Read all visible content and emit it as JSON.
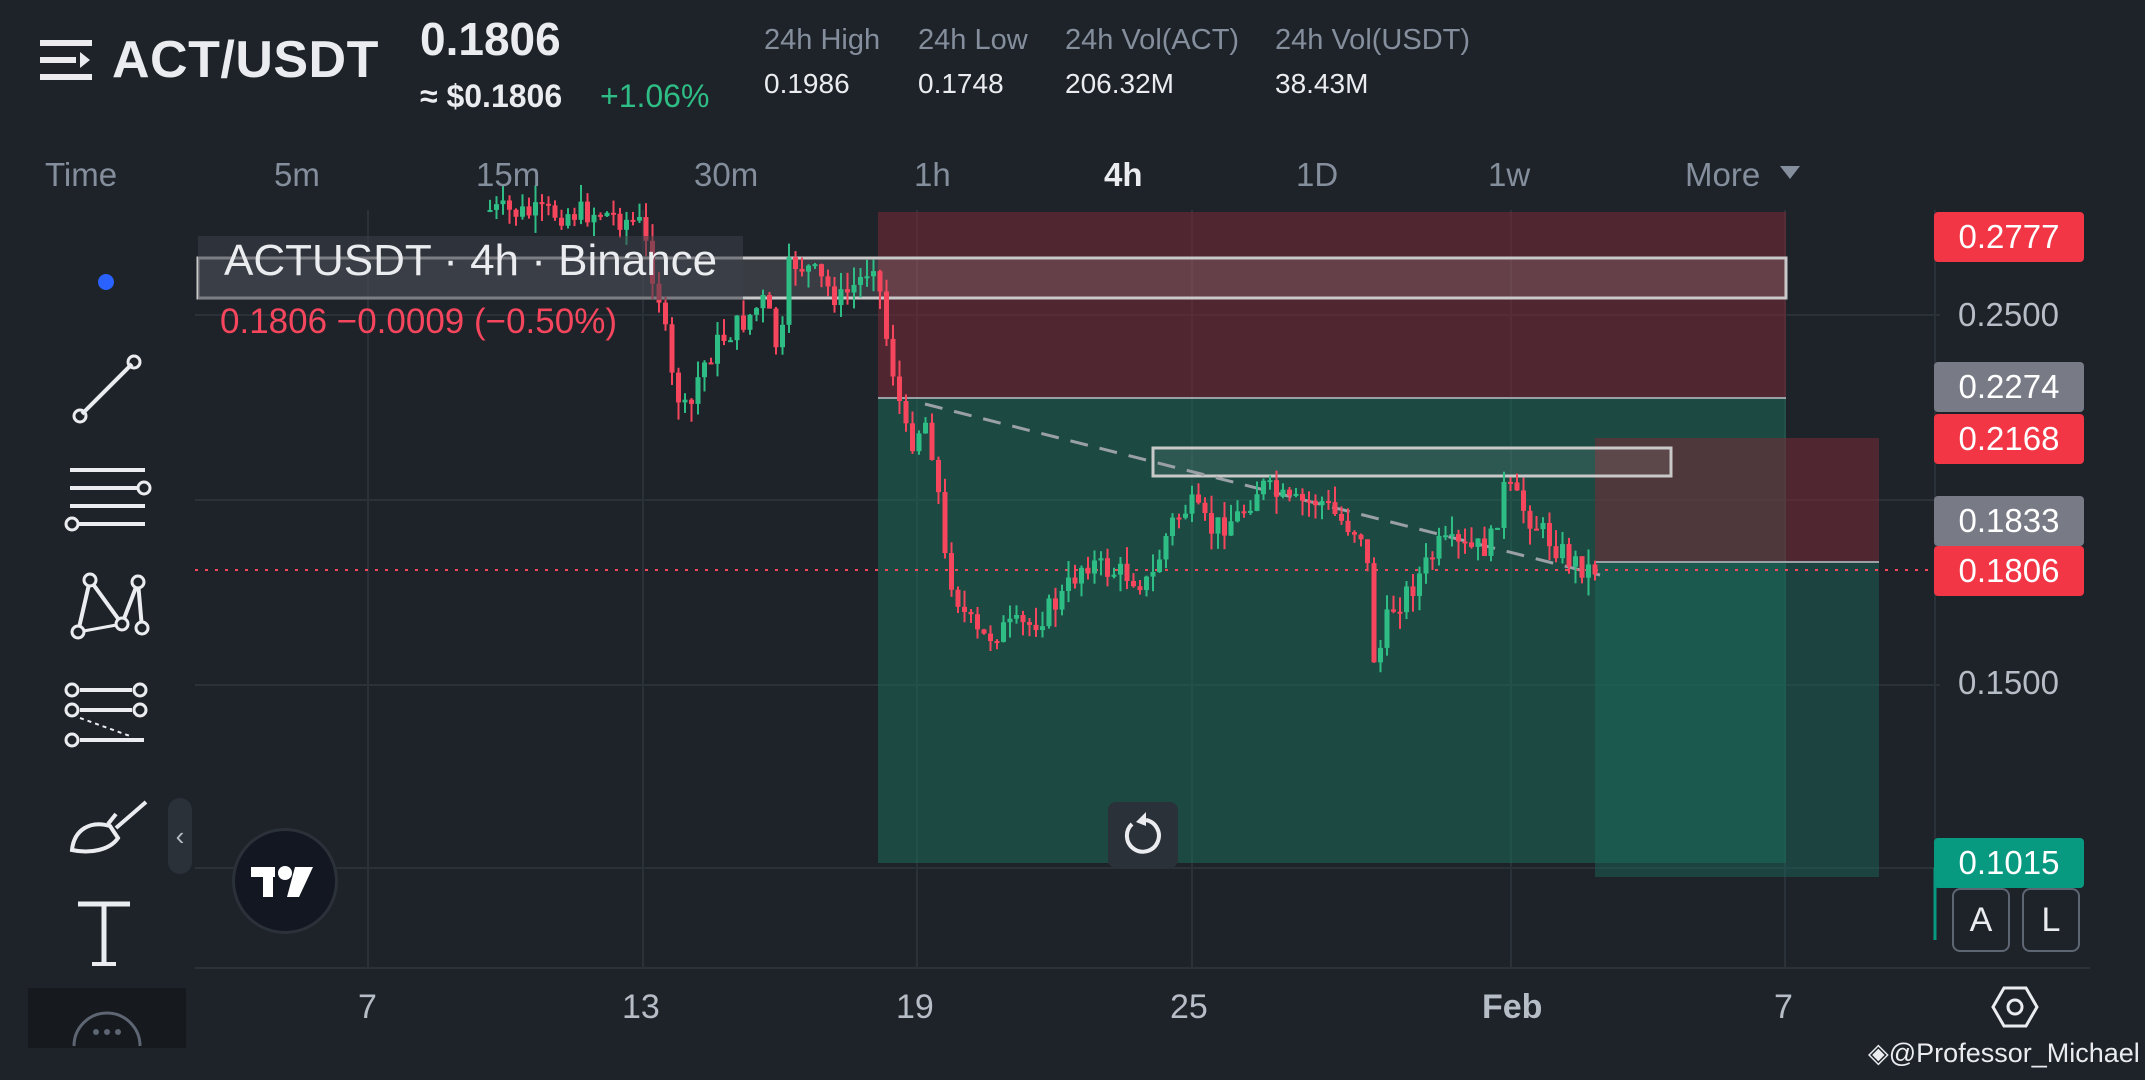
{
  "header": {
    "pair": "ACT/USDT",
    "last_price": "0.1806",
    "usd_price": "≈ $0.1806",
    "change_pct": "+1.06%",
    "stats": [
      {
        "label": "24h High",
        "value": "0.1986"
      },
      {
        "label": "24h Low",
        "value": "0.1748"
      },
      {
        "label": "24h Vol(ACT)",
        "value": "206.32M"
      },
      {
        "label": "24h Vol(USDT)",
        "value": "38.43M"
      }
    ]
  },
  "timeframes": [
    "Time",
    "5m",
    "15m",
    "30m",
    "1h",
    "4h",
    "1D",
    "1w",
    "More"
  ],
  "active_timeframe": "4h",
  "toolbar": {
    "tools": [
      "dot-indicator",
      "trend-line-tool",
      "horizontal-lines-tool",
      "pattern-tool",
      "fib-tool",
      "brush-tool",
      "text-tool",
      "more-tools"
    ]
  },
  "chart": {
    "legend_title": "ACTUSDT · 4h · Binance",
    "legend_ohlc": "0.1806  −0.0009 (−0.50%)",
    "price_axis": [
      "0.2500",
      "0.1500"
    ],
    "price_tags": [
      {
        "value": "0.2777",
        "color": "#f23645"
      },
      {
        "value": "0.2274",
        "color": "#787b86"
      },
      {
        "value": "0.2168",
        "color": "#f23645"
      },
      {
        "value": "0.1833",
        "color": "#787b86"
      },
      {
        "value": "0.1806",
        "color": "#f23645"
      },
      {
        "value": "0.1015",
        "color": "#089981"
      }
    ],
    "date_axis": [
      "7",
      "13",
      "19",
      "25",
      "Feb",
      "7"
    ],
    "mode_buttons": [
      "A",
      "L"
    ],
    "collapse_label": "‹"
  },
  "colors": {
    "up": "#2ebd85",
    "down": "#f6465d",
    "accent_blue": "#2962ff",
    "bg": "#1e2329"
  },
  "watermark": "@Professor_Michael"
}
